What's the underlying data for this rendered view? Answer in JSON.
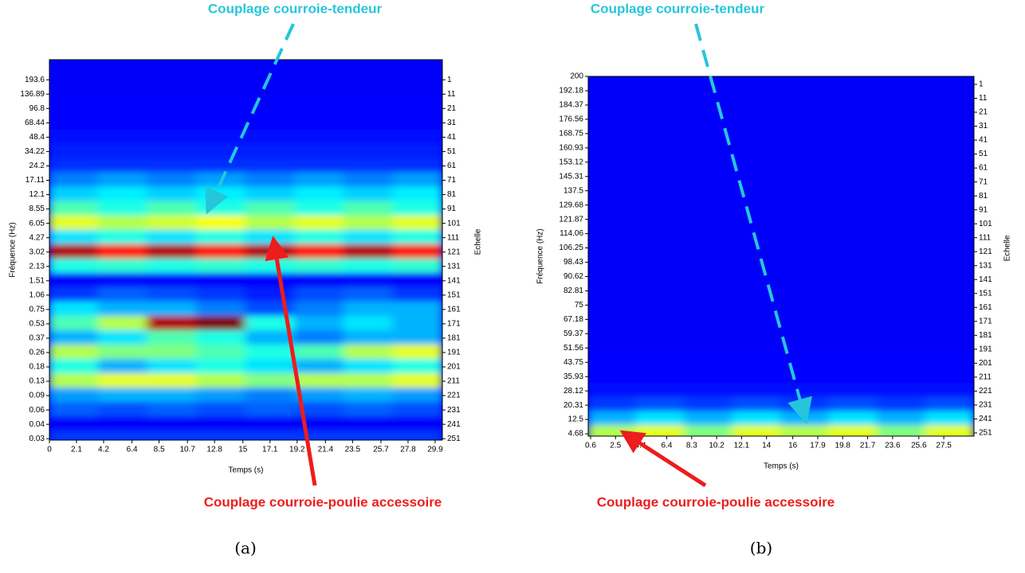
{
  "chart_data": [
    {
      "type": "heatmap",
      "caption": "(a)",
      "annotations": [
        "Couplage courroie-tendeur",
        "Couplage courroie-poulie accessoire"
      ],
      "xlabel": "Temps (s)",
      "ylabel": "Fréquence (Hz)",
      "y2label": "Echelle",
      "xlim": [
        0,
        30.46
      ],
      "xticks": [
        0,
        2.1,
        4.2,
        6.4,
        8.5,
        10.7,
        12.8,
        15,
        17.1,
        19.2,
        21.4,
        23.5,
        25.7,
        27.8,
        29.9
      ],
      "yticks": [
        193.6,
        136.89,
        96.8,
        68.44,
        48.4,
        34.22,
        24.2,
        17.11,
        12.1,
        8.55,
        6.05,
        4.27,
        3.02,
        2.13,
        1.51,
        1.06,
        0.75,
        0.53,
        0.37,
        0.26,
        0.18,
        0.13,
        0.09,
        0.06,
        0.04,
        0.03
      ],
      "y2lim": [
        -13,
        252
      ],
      "y2ticks": [
        1,
        11,
        21,
        31,
        41,
        51,
        61,
        71,
        81,
        91,
        101,
        111,
        121,
        131,
        141,
        151,
        161,
        171,
        181,
        191,
        201,
        211,
        221,
        231,
        241,
        251
      ],
      "values": [
        [
          0.12,
          0.12,
          0.12,
          0.12,
          0.12,
          0.12,
          0.12,
          0.12
        ],
        [
          0.12,
          0.12,
          0.12,
          0.12,
          0.12,
          0.12,
          0.12,
          0.12
        ],
        [
          0.13,
          0.13,
          0.13,
          0.13,
          0.13,
          0.13,
          0.13,
          0.13
        ],
        [
          0.13,
          0.13,
          0.13,
          0.13,
          0.13,
          0.13,
          0.13,
          0.13
        ],
        [
          0.14,
          0.14,
          0.14,
          0.14,
          0.14,
          0.14,
          0.14,
          0.14
        ],
        [
          0.15,
          0.15,
          0.15,
          0.15,
          0.15,
          0.15,
          0.15,
          0.15
        ],
        [
          0.17,
          0.17,
          0.17,
          0.17,
          0.17,
          0.17,
          0.17,
          0.17
        ],
        [
          0.25,
          0.28,
          0.25,
          0.28,
          0.25,
          0.28,
          0.25,
          0.28
        ],
        [
          0.33,
          0.36,
          0.33,
          0.36,
          0.33,
          0.36,
          0.33,
          0.36
        ],
        [
          0.45,
          0.4,
          0.45,
          0.4,
          0.45,
          0.4,
          0.45,
          0.4
        ],
        [
          0.6,
          0.55,
          0.58,
          0.62,
          0.55,
          0.6,
          0.55,
          0.6
        ],
        [
          0.35,
          0.4,
          0.35,
          0.4,
          0.35,
          0.4,
          0.35,
          0.4
        ],
        [
          0.95,
          0.85,
          0.95,
          0.85,
          0.95,
          0.85,
          0.95,
          0.85
        ],
        [
          0.4,
          0.42,
          0.4,
          0.42,
          0.4,
          0.42,
          0.4,
          0.42
        ],
        [
          0.12,
          0.12,
          0.12,
          0.12,
          0.12,
          0.12,
          0.12,
          0.12
        ],
        [
          0.18,
          0.22,
          0.2,
          0.18,
          0.15,
          0.2,
          0.22,
          0.18
        ],
        [
          0.35,
          0.3,
          0.3,
          0.25,
          0.2,
          0.25,
          0.3,
          0.3
        ],
        [
          0.45,
          0.55,
          0.95,
          1.0,
          0.4,
          0.3,
          0.35,
          0.3
        ],
        [
          0.3,
          0.35,
          0.45,
          0.4,
          0.3,
          0.25,
          0.3,
          0.3
        ],
        [
          0.55,
          0.5,
          0.5,
          0.45,
          0.4,
          0.45,
          0.55,
          0.6
        ],
        [
          0.4,
          0.3,
          0.35,
          0.4,
          0.35,
          0.3,
          0.35,
          0.4
        ],
        [
          0.55,
          0.6,
          0.6,
          0.55,
          0.5,
          0.55,
          0.55,
          0.6
        ],
        [
          0.28,
          0.3,
          0.3,
          0.28,
          0.25,
          0.28,
          0.3,
          0.28
        ],
        [
          0.22,
          0.2,
          0.22,
          0.2,
          0.22,
          0.2,
          0.22,
          0.2
        ],
        [
          0.12,
          0.12,
          0.12,
          0.12,
          0.12,
          0.12,
          0.12,
          0.12
        ],
        [
          0.18,
          0.18,
          0.18,
          0.18,
          0.18,
          0.18,
          0.18,
          0.18
        ]
      ]
    },
    {
      "type": "heatmap",
      "caption": "(b)",
      "annotations": [
        "Couplage courroie-tendeur",
        "Couplage courroie-poulie accessoire"
      ],
      "xlabel": "Temps (s)",
      "ylabel": "Fréquence (Hz)",
      "y2label": "Echelle",
      "xlim": [
        0.42,
        29.8
      ],
      "xticks": [
        0.6,
        2.5,
        4.4,
        6.4,
        8.3,
        10.2,
        12.1,
        14,
        16,
        17.9,
        19.8,
        21.7,
        23.6,
        25.6,
        27.5
      ],
      "ylim": [
        3.4,
        200
      ],
      "yticks": [
        200,
        192.18,
        184.37,
        176.56,
        168.75,
        160.93,
        153.12,
        145.31,
        137.5,
        129.68,
        121.87,
        114.06,
        106.25,
        98.43,
        90.62,
        82.81,
        75,
        67.18,
        59.37,
        51.56,
        43.75,
        35.93,
        28.12,
        20.31,
        12.5,
        4.68
      ],
      "y2lim": [
        -4.7,
        253.3
      ],
      "y2ticks": [
        1,
        11,
        21,
        31,
        41,
        51,
        61,
        71,
        81,
        91,
        101,
        111,
        121,
        131,
        141,
        151,
        161,
        171,
        181,
        191,
        201,
        211,
        221,
        231,
        241,
        251
      ],
      "values": [
        [
          0.12,
          0.12,
          0.12,
          0.12,
          0.12,
          0.12,
          0.12,
          0.12
        ],
        [
          0.12,
          0.12,
          0.12,
          0.12,
          0.12,
          0.12,
          0.12,
          0.12
        ],
        [
          0.12,
          0.12,
          0.12,
          0.12,
          0.12,
          0.12,
          0.12,
          0.12
        ],
        [
          0.12,
          0.12,
          0.12,
          0.12,
          0.12,
          0.12,
          0.12,
          0.12
        ],
        [
          0.12,
          0.12,
          0.12,
          0.12,
          0.12,
          0.12,
          0.12,
          0.12
        ],
        [
          0.12,
          0.12,
          0.12,
          0.12,
          0.12,
          0.12,
          0.12,
          0.12
        ],
        [
          0.12,
          0.12,
          0.12,
          0.12,
          0.12,
          0.12,
          0.12,
          0.12
        ],
        [
          0.12,
          0.12,
          0.12,
          0.12,
          0.12,
          0.12,
          0.12,
          0.12
        ],
        [
          0.12,
          0.12,
          0.12,
          0.12,
          0.12,
          0.12,
          0.12,
          0.12
        ],
        [
          0.12,
          0.12,
          0.12,
          0.12,
          0.12,
          0.12,
          0.12,
          0.12
        ],
        [
          0.12,
          0.12,
          0.12,
          0.12,
          0.12,
          0.12,
          0.12,
          0.12
        ],
        [
          0.12,
          0.12,
          0.12,
          0.12,
          0.12,
          0.12,
          0.12,
          0.12
        ],
        [
          0.12,
          0.12,
          0.12,
          0.12,
          0.12,
          0.12,
          0.12,
          0.12
        ],
        [
          0.12,
          0.12,
          0.12,
          0.12,
          0.12,
          0.12,
          0.12,
          0.12
        ],
        [
          0.12,
          0.12,
          0.12,
          0.12,
          0.12,
          0.12,
          0.12,
          0.12
        ],
        [
          0.12,
          0.12,
          0.12,
          0.12,
          0.12,
          0.12,
          0.12,
          0.12
        ],
        [
          0.12,
          0.12,
          0.12,
          0.12,
          0.12,
          0.12,
          0.12,
          0.12
        ],
        [
          0.12,
          0.12,
          0.12,
          0.12,
          0.12,
          0.12,
          0.12,
          0.12
        ],
        [
          0.12,
          0.12,
          0.12,
          0.12,
          0.12,
          0.12,
          0.12,
          0.12
        ],
        [
          0.12,
          0.12,
          0.12,
          0.12,
          0.12,
          0.12,
          0.12,
          0.12
        ],
        [
          0.13,
          0.13,
          0.13,
          0.13,
          0.13,
          0.13,
          0.13,
          0.13
        ],
        [
          0.13,
          0.13,
          0.13,
          0.13,
          0.13,
          0.13,
          0.13,
          0.13
        ],
        [
          0.14,
          0.14,
          0.14,
          0.14,
          0.14,
          0.14,
          0.14,
          0.14
        ],
        [
          0.18,
          0.2,
          0.18,
          0.2,
          0.18,
          0.2,
          0.18,
          0.2
        ],
        [
          0.3,
          0.35,
          0.3,
          0.35,
          0.3,
          0.35,
          0.3,
          0.35
        ],
        [
          0.55,
          0.6,
          0.5,
          0.6,
          0.55,
          0.6,
          0.5,
          0.6
        ]
      ]
    }
  ]
}
